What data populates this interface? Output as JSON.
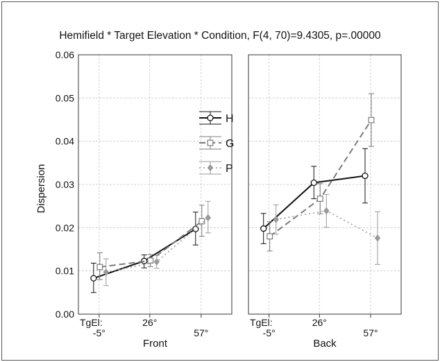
{
  "chart_data": {
    "type": "line",
    "title": "Hemifield * Target Elevation * Condition, F(4, 70)=9.4305, p=.00000",
    "ylabel": "Dispersion",
    "ylim": [
      0,
      0.06
    ],
    "yticks": [
      "0.00",
      "0.01",
      "0.02",
      "0.03",
      "0.04",
      "0.05",
      "0.06"
    ],
    "grid": true,
    "legend_position": "upper-left of right portion of left panel",
    "x_prefix_label": "TgEl:",
    "categories": [
      "-5°",
      "26°",
      "57°"
    ],
    "panels": [
      {
        "name": "Front",
        "series": [
          {
            "name": "H",
            "values": [
              0.0083,
              0.0123,
              0.0197
            ],
            "err_low": [
              0.005,
              0.0107,
              0.016
            ],
            "err_high": [
              0.0118,
              0.0137,
              0.0236
            ]
          },
          {
            "name": "G",
            "values": [
              0.0109,
              0.0124,
              0.0215
            ],
            "err_low": [
              0.008,
              0.011,
              0.018
            ],
            "err_high": [
              0.0142,
              0.0138,
              0.0252
            ]
          },
          {
            "name": "P",
            "values": [
              0.0097,
              0.0121,
              0.0223
            ],
            "err_low": [
              0.0066,
              0.0106,
              0.0188
            ],
            "err_high": [
              0.0128,
              0.0136,
              0.0261
            ]
          }
        ]
      },
      {
        "name": "Back",
        "series": [
          {
            "name": "H",
            "values": [
              0.0198,
              0.0304,
              0.032
            ],
            "err_low": [
              0.0163,
              0.0267,
              0.0257
            ],
            "err_high": [
              0.0233,
              0.0342,
              0.0383
            ]
          },
          {
            "name": "G",
            "values": [
              0.018,
              0.0267,
              0.0449
            ],
            "err_low": [
              0.0146,
              0.0232,
              0.0388
            ],
            "err_high": [
              0.0214,
              0.0302,
              0.051
            ]
          },
          {
            "name": "P",
            "values": [
              0.0219,
              0.0239,
              0.0176
            ],
            "err_low": [
              0.0185,
              0.0201,
              0.0115
            ],
            "err_high": [
              0.0253,
              0.0277,
              0.0237
            ]
          }
        ]
      }
    ]
  },
  "colors": {
    "H": "#111111",
    "G": "#7a7a7a",
    "P": "#9a9a9a",
    "grid": "#c8c8c8",
    "frame": "#333333"
  },
  "markers": {
    "H": "open-circle",
    "G": "open-square",
    "P": "filled-diamond"
  }
}
